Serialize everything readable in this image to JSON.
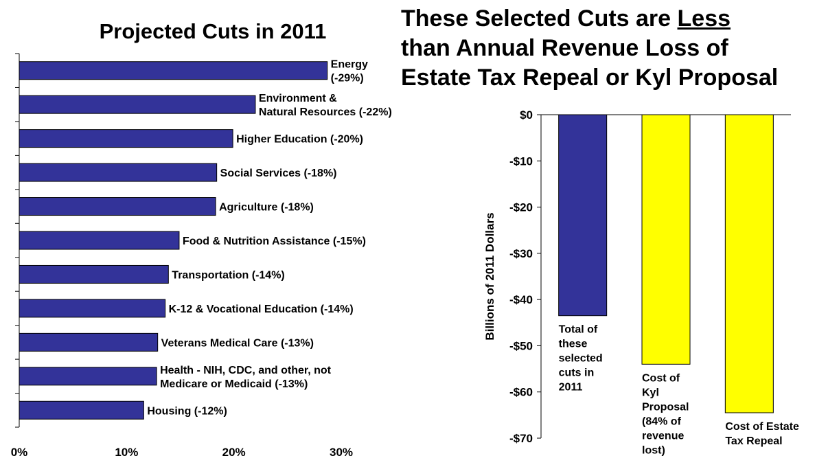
{
  "left_title": "Projected Cuts in 2011",
  "right_title": {
    "line1_pre": "These Selected Cuts are ",
    "line1_underlined": "Less",
    "line2": "than Annual Revenue Loss of",
    "line3": "Estate Tax Repeal or Kyl Proposal"
  },
  "colors": {
    "bar": "#333399",
    "yellow": "#ffff00",
    "outline": "#000000"
  },
  "chart_data": [
    {
      "type": "bar",
      "orientation": "horizontal",
      "title": "Projected Cuts in 2011",
      "xlim": [
        0,
        30
      ],
      "xticks": [
        "0%",
        "10%",
        "20%",
        "30%"
      ],
      "categories": [
        [
          "Energy",
          "(-29%)"
        ],
        [
          "Environment &",
          "Natural Resources (-22%)"
        ],
        [
          "Higher Education (-20%)"
        ],
        [
          "Social Services (-18%)"
        ],
        [
          "Agriculture (-18%)"
        ],
        [
          "Food & Nutrition Assistance (-15%)"
        ],
        [
          "Transportation (-14%)"
        ],
        [
          "K-12 & Vocational Education (-14%)"
        ],
        [
          "Veterans Medical Care (-13%)"
        ],
        [
          "Health - NIH, CDC, and other, not",
          "Medicare or Medicaid (-13%)"
        ],
        [
          "Housing (-12%)"
        ]
      ],
      "values": [
        28.7,
        22.0,
        19.9,
        18.4,
        18.3,
        14.9,
        13.9,
        13.6,
        12.9,
        12.8,
        11.6
      ]
    },
    {
      "type": "bar",
      "title": "",
      "ylabel": "Billions of 2011 Dollars",
      "ylim": [
        -70,
        0
      ],
      "yticks": [
        "$0",
        "-$10",
        "-$20",
        "-$30",
        "-$40",
        "-$50",
        "-$60",
        "-$70"
      ],
      "categories": [
        [
          "Total of",
          "these",
          "selected",
          "cuts in",
          "2011"
        ],
        [
          "Cost of",
          "Kyl",
          "Proposal",
          "(84% of",
          "revenue",
          "lost)"
        ],
        [
          "Cost of Estate",
          "Tax Repeal"
        ]
      ],
      "values": [
        -43.5,
        -54,
        -64.5
      ],
      "colors": [
        "#333399",
        "#ffff00",
        "#ffff00"
      ]
    }
  ]
}
